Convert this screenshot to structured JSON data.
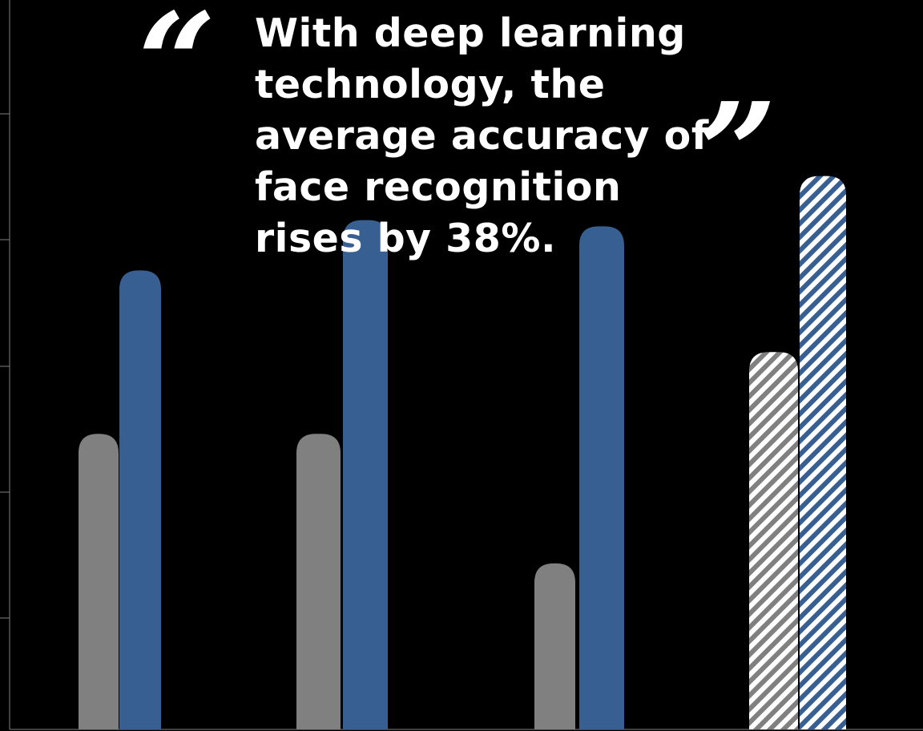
{
  "quote": {
    "open_mark": "“",
    "close_mark": "”",
    "text": "With deep learning technology, the average accuracy of face recognition rises by 38%."
  },
  "colors": {
    "background": "#000000",
    "series_gray": "#808080",
    "series_blue": "#385f91",
    "axis": "#7f7f7f",
    "text": "#ffffff"
  },
  "chart_data": {
    "type": "bar",
    "categories": [
      "",
      "",
      "",
      ""
    ],
    "series": [
      {
        "values": [
          2.35,
          2.35,
          1.32,
          3.0
        ],
        "color": "#808080"
      },
      {
        "values": [
          3.65,
          4.05,
          4.0,
          4.4
        ],
        "color": "#385f91"
      }
    ],
    "hatched_category_index": 3,
    "ylim": [
      0,
      5.8
    ],
    "grid": false,
    "legend": "none",
    "title": "",
    "xlabel": "",
    "ylabel": ""
  }
}
